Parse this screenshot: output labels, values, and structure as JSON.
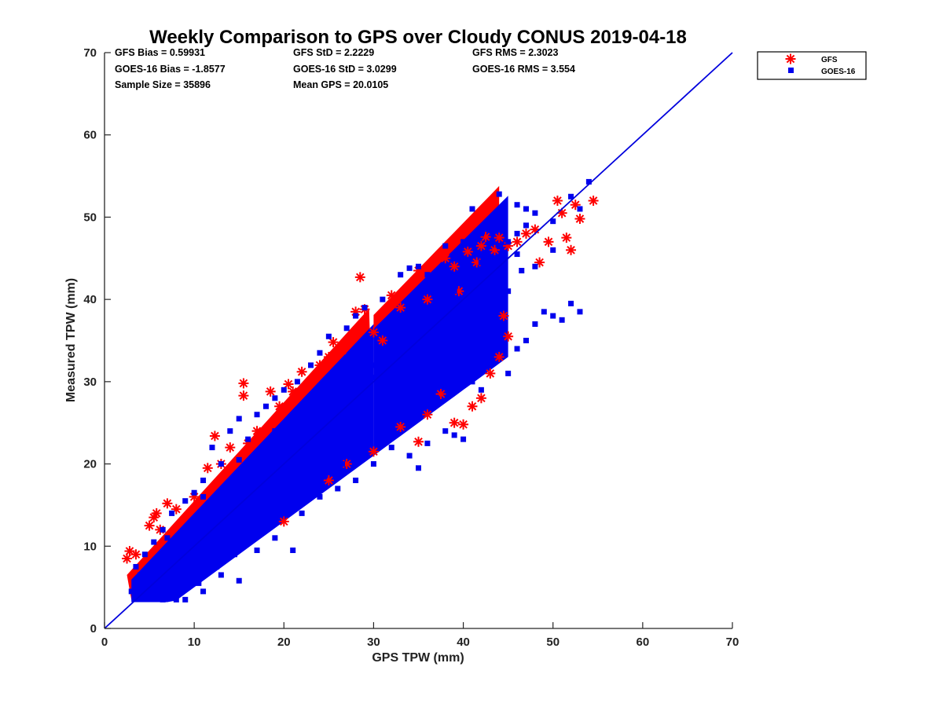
{
  "colors": {
    "gfs": "#ff0000",
    "goes": "#0000ee",
    "axis": "#262626",
    "line": "#0000dd"
  },
  "chart_data": {
    "type": "scatter",
    "title": "Weekly Comparison to GPS over Cloudy CONUS 2019-04-18",
    "xlabel": "GPS TPW (mm)",
    "ylabel": "Measured TPW (mm)",
    "xlim": [
      0,
      70
    ],
    "ylim": [
      0,
      70
    ],
    "xticks": [
      "0",
      "10",
      "20",
      "30",
      "40",
      "50",
      "60",
      "70"
    ],
    "yticks": [
      "0",
      "10",
      "20",
      "30",
      "40",
      "50",
      "60",
      "70"
    ],
    "grid": false,
    "legend_position": "top-right outside",
    "reference_line": {
      "x": [
        0,
        70
      ],
      "y": [
        0,
        70
      ]
    },
    "stats": [
      [
        "GFS Bias = 0.59931",
        "GFS StD = 2.2229",
        "GFS RMS = 2.3023"
      ],
      [
        "GOES-16 Bias = -1.8577",
        "GOES-16 StD = 3.0299",
        "GOES-16 RMS = 3.554"
      ],
      [
        "Sample Size = 35896",
        "Mean GPS = 20.0105",
        ""
      ]
    ],
    "series": [
      {
        "name": "GFS",
        "marker": "asterisk",
        "points": [
          [
            2.5,
            8.5
          ],
          [
            2.8,
            9.4
          ],
          [
            3.5,
            9.0
          ],
          [
            5.0,
            12.5
          ],
          [
            5.5,
            13.5
          ],
          [
            5.8,
            14.0
          ],
          [
            6.2,
            12.0
          ],
          [
            7.0,
            15.2
          ],
          [
            8.0,
            14.5
          ],
          [
            10.0,
            16.0
          ],
          [
            11.5,
            19.5
          ],
          [
            12.3,
            23.4
          ],
          [
            13.0,
            20.0
          ],
          [
            14.0,
            22.0
          ],
          [
            15.5,
            29.8
          ],
          [
            15.5,
            28.3
          ],
          [
            16.0,
            22.5
          ],
          [
            17.0,
            24.0
          ],
          [
            18.5,
            28.8
          ],
          [
            19.5,
            27.0
          ],
          [
            20.5,
            29.7
          ],
          [
            21.0,
            28.8
          ],
          [
            22.0,
            31.2
          ],
          [
            23.0,
            30.0
          ],
          [
            24.0,
            32.0
          ],
          [
            25.0,
            33.0
          ],
          [
            25.5,
            34.8
          ],
          [
            26.5,
            33.8
          ],
          [
            28.0,
            38.5
          ],
          [
            28.5,
            42.7
          ],
          [
            29.0,
            38.8
          ],
          [
            30.0,
            36.0
          ],
          [
            31.0,
            35.0
          ],
          [
            32.0,
            40.5
          ],
          [
            33.0,
            39.0
          ],
          [
            35.0,
            43.5
          ],
          [
            36.0,
            40.0
          ],
          [
            38.0,
            45.0
          ],
          [
            39.0,
            44.0
          ],
          [
            39.5,
            41.0
          ],
          [
            40.5,
            45.8
          ],
          [
            41.5,
            44.5
          ],
          [
            42.0,
            46.5
          ],
          [
            42.5,
            47.6
          ],
          [
            43.5,
            46.0
          ],
          [
            44.0,
            47.5
          ],
          [
            45.0,
            46.5
          ],
          [
            46.0,
            47.0
          ],
          [
            47.0,
            48.0
          ],
          [
            48.0,
            48.5
          ],
          [
            48.5,
            44.5
          ],
          [
            49.5,
            47.0
          ],
          [
            50.5,
            52.0
          ],
          [
            51.0,
            50.5
          ],
          [
            51.5,
            47.5
          ],
          [
            52.0,
            46.0
          ],
          [
            52.5,
            51.5
          ],
          [
            53.0,
            49.8
          ],
          [
            54.5,
            52.0
          ],
          [
            43.0,
            31.0
          ],
          [
            44.0,
            33.0
          ],
          [
            42.0,
            28.0
          ],
          [
            41.0,
            27.0
          ],
          [
            39.0,
            25.0
          ],
          [
            40.0,
            24.8
          ],
          [
            35.0,
            22.7
          ],
          [
            33.0,
            24.5
          ],
          [
            30.0,
            21.5
          ],
          [
            25.0,
            18.0
          ],
          [
            20.0,
            13.0
          ],
          [
            45.0,
            35.5
          ],
          [
            44.5,
            38.0
          ],
          [
            37.5,
            28.5
          ],
          [
            36.0,
            26.0
          ],
          [
            27.0,
            20.0
          ]
        ]
      },
      {
        "name": "GOES-16",
        "marker": "square",
        "points": [
          [
            3.0,
            4.5
          ],
          [
            4.0,
            5.5
          ],
          [
            5.0,
            4.0
          ],
          [
            6.0,
            6.5
          ],
          [
            7.0,
            5.0
          ],
          [
            8.0,
            3.5
          ],
          [
            9.0,
            6.0
          ],
          [
            10.0,
            7.5
          ],
          [
            11.0,
            6.5
          ],
          [
            12.0,
            9.5
          ],
          [
            13.0,
            8.0
          ],
          [
            14.0,
            11.0
          ],
          [
            15.0,
            10.5
          ],
          [
            16.0,
            12.0
          ],
          [
            17.0,
            14.0
          ],
          [
            18.0,
            15.5
          ],
          [
            19.0,
            16.0
          ],
          [
            20.0,
            18.5
          ],
          [
            21.0,
            19.0
          ],
          [
            22.0,
            20.5
          ],
          [
            23.0,
            21.0
          ],
          [
            24.0,
            23.5
          ],
          [
            25.0,
            24.0
          ],
          [
            26.0,
            25.5
          ],
          [
            27.0,
            26.0
          ],
          [
            28.0,
            28.5
          ],
          [
            29.0,
            29.0
          ],
          [
            30.0,
            30.5
          ],
          [
            31.0,
            31.0
          ],
          [
            32.0,
            33.0
          ],
          [
            33.0,
            34.0
          ],
          [
            34.0,
            35.5
          ],
          [
            35.0,
            36.0
          ],
          [
            36.0,
            38.0
          ],
          [
            37.0,
            38.5
          ],
          [
            38.0,
            40.0
          ],
          [
            39.0,
            41.5
          ],
          [
            40.0,
            42.5
          ],
          [
            41.0,
            43.0
          ],
          [
            42.0,
            44.5
          ],
          [
            43.0,
            45.0
          ],
          [
            44.0,
            46.5
          ],
          [
            45.0,
            47.0
          ],
          [
            46.0,
            48.0
          ],
          [
            47.0,
            49.0
          ],
          [
            48.0,
            50.5
          ],
          [
            50.0,
            49.5
          ],
          [
            52.0,
            52.5
          ],
          [
            54.0,
            54.3
          ],
          [
            44.0,
            52.8
          ],
          [
            46.0,
            51.5
          ],
          [
            47.0,
            51.0
          ],
          [
            41.0,
            51.0
          ],
          [
            48.0,
            37.0
          ],
          [
            49.0,
            38.5
          ],
          [
            50.0,
            38.0
          ],
          [
            51.0,
            37.5
          ],
          [
            52.0,
            39.5
          ],
          [
            53.0,
            38.5
          ],
          [
            47.0,
            35.0
          ],
          [
            46.0,
            34.0
          ],
          [
            45.0,
            31.0
          ],
          [
            43.0,
            33.0
          ],
          [
            42.0,
            29.0
          ],
          [
            41.0,
            30.0
          ],
          [
            40.0,
            23.0
          ],
          [
            39.0,
            23.5
          ],
          [
            38.0,
            24.0
          ],
          [
            36.0,
            22.5
          ],
          [
            35.0,
            19.5
          ],
          [
            34.0,
            21.0
          ],
          [
            32.0,
            22.0
          ],
          [
            30.0,
            20.0
          ],
          [
            28.0,
            18.0
          ],
          [
            26.0,
            17.0
          ],
          [
            24.0,
            16.0
          ],
          [
            22.0,
            14.0
          ],
          [
            21.0,
            9.5
          ],
          [
            19.0,
            11.0
          ],
          [
            17.0,
            9.5
          ],
          [
            15.0,
            5.8
          ],
          [
            13.0,
            6.5
          ],
          [
            11.0,
            4.5
          ],
          [
            9.0,
            3.5
          ],
          [
            3.5,
            7.5
          ],
          [
            4.5,
            9.0
          ],
          [
            5.5,
            10.5
          ],
          [
            6.5,
            12.0
          ],
          [
            7.5,
            14.0
          ],
          [
            9.0,
            15.5
          ],
          [
            10.0,
            16.5
          ],
          [
            11.0,
            18.0
          ],
          [
            12.0,
            22.0
          ],
          [
            13.0,
            20.0
          ],
          [
            14.0,
            24.0
          ],
          [
            15.0,
            25.5
          ],
          [
            16.0,
            23.0
          ],
          [
            17.0,
            26.0
          ],
          [
            18.0,
            27.0
          ],
          [
            19.0,
            28.0
          ],
          [
            20.0,
            29.0
          ],
          [
            21.5,
            30.0
          ],
          [
            23.0,
            32.0
          ],
          [
            24.0,
            33.5
          ],
          [
            25.0,
            35.5
          ],
          [
            27.0,
            36.5
          ],
          [
            28.0,
            38.0
          ],
          [
            29.0,
            39.0
          ],
          [
            31.0,
            40.0
          ],
          [
            33.0,
            43.0
          ],
          [
            34.0,
            43.8
          ],
          [
            35.0,
            44.0
          ],
          [
            36.0,
            43.0
          ],
          [
            38.0,
            46.5
          ],
          [
            37.0,
            28.0
          ],
          [
            39.0,
            30.0
          ],
          [
            41.0,
            33.0
          ],
          [
            43.0,
            36.0
          ],
          [
            45.0,
            41.0
          ],
          [
            46.5,
            43.5
          ],
          [
            44.5,
            44.0
          ],
          [
            42.5,
            40.0
          ],
          [
            40.5,
            37.0
          ],
          [
            38.5,
            33.5
          ],
          [
            36.5,
            31.0
          ],
          [
            34.5,
            28.0
          ],
          [
            32.5,
            26.0
          ],
          [
            30.5,
            24.0
          ],
          [
            28.5,
            22.0
          ],
          [
            26.5,
            20.0
          ],
          [
            24.5,
            18.5
          ],
          [
            22.5,
            17.0
          ],
          [
            20.5,
            15.0
          ],
          [
            18.5,
            13.0
          ],
          [
            16.5,
            11.0
          ],
          [
            14.5,
            9.0
          ],
          [
            12.5,
            7.5
          ],
          [
            10.5,
            5.5
          ],
          [
            8.5,
            4.5
          ],
          [
            6.5,
            3.5
          ],
          [
            5.0,
            7.0
          ],
          [
            7.0,
            9.0
          ],
          [
            9.0,
            11.0
          ],
          [
            11.0,
            13.0
          ],
          [
            13.0,
            15.0
          ],
          [
            15.0,
            17.0
          ],
          [
            17.0,
            19.0
          ],
          [
            19.0,
            21.0
          ],
          [
            21.0,
            23.0
          ],
          [
            23.0,
            25.0
          ],
          [
            25.0,
            27.0
          ],
          [
            27.0,
            29.0
          ],
          [
            29.0,
            31.0
          ],
          [
            31.0,
            33.0
          ],
          [
            33.0,
            35.0
          ],
          [
            35.0,
            37.0
          ],
          [
            37.0,
            39.0
          ],
          [
            39.0,
            41.0
          ],
          [
            41.0,
            40.0
          ],
          [
            43.0,
            42.0
          ],
          [
            40.0,
            47.0
          ],
          [
            42.0,
            48.0
          ],
          [
            44.0,
            49.5
          ],
          [
            31.0,
            36.5
          ],
          [
            27.0,
            32.5
          ],
          [
            23.0,
            28.0
          ],
          [
            19.0,
            24.0
          ],
          [
            15.0,
            20.5
          ],
          [
            11.0,
            16.0
          ],
          [
            7.0,
            11.0
          ],
          [
            4.0,
            6.5
          ],
          [
            6.0,
            8.0
          ],
          [
            8.0,
            10.0
          ],
          [
            10.0,
            12.0
          ],
          [
            12.0,
            14.0
          ],
          [
            14.0,
            16.0
          ],
          [
            16.0,
            18.0
          ],
          [
            18.0,
            20.0
          ],
          [
            20.0,
            22.0
          ],
          [
            22.0,
            24.0
          ],
          [
            24.0,
            26.0
          ],
          [
            26.0,
            28.0
          ],
          [
            28.0,
            30.0
          ],
          [
            30.0,
            32.0
          ],
          [
            32.0,
            34.0
          ],
          [
            34.0,
            36.0
          ],
          [
            36.0,
            37.0
          ],
          [
            38.0,
            37.5
          ],
          [
            40.0,
            39.0
          ],
          [
            42.0,
            41.5
          ],
          [
            44.0,
            43.5
          ],
          [
            46.0,
            45.5
          ],
          [
            48.0,
            44.0
          ],
          [
            50.0,
            46.0
          ],
          [
            53.0,
            51.0
          ]
        ]
      }
    ]
  }
}
